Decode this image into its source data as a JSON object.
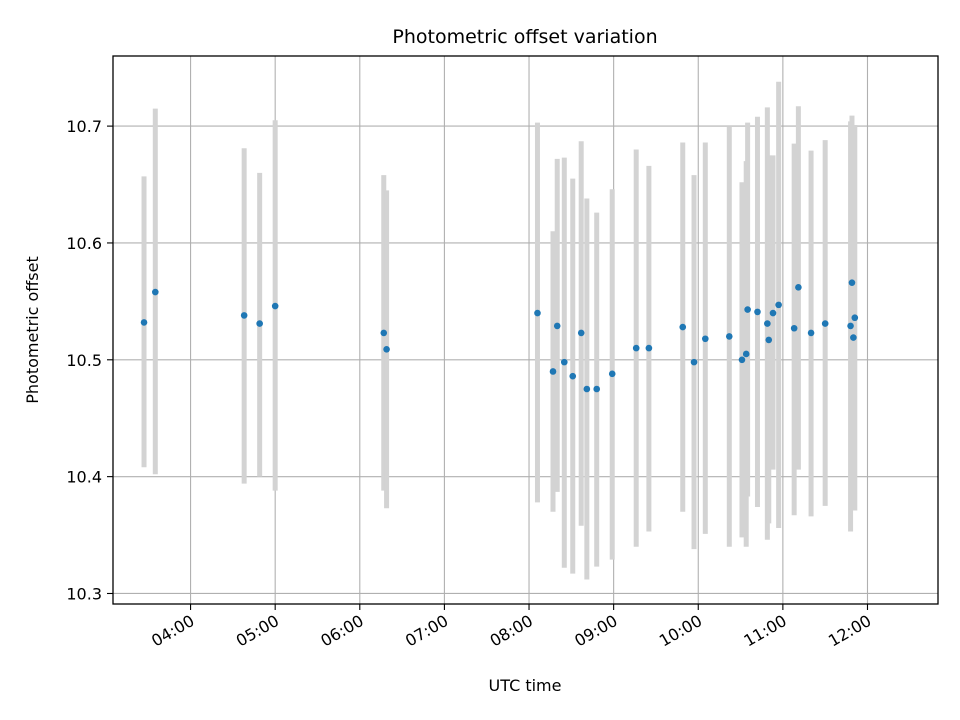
{
  "chart_data": {
    "type": "scatter",
    "title": "Photometric offset variation",
    "xlabel": "UTC time",
    "ylabel": "Photometric offset",
    "x_unit": "UTC time (HH:MM)",
    "xlim": [
      "03:05",
      "12:50"
    ],
    "ylim": [
      10.291,
      10.76
    ],
    "x_ticks": [
      "04:00",
      "05:00",
      "06:00",
      "07:00",
      "08:00",
      "09:00",
      "10:00",
      "11:00",
      "12:00"
    ],
    "y_ticks": [
      10.3,
      10.4,
      10.5,
      10.6,
      10.7
    ],
    "grid": true,
    "legend": "none",
    "colors": {
      "points": "#1f77b4",
      "errorbars": "#d3d3d3",
      "grid": "#b0b0b0",
      "axes": "#000000"
    },
    "points": [
      {
        "x": "03:27",
        "y": 10.532,
        "ylow": 10.408,
        "yhigh": 10.657
      },
      {
        "x": "03:35",
        "y": 10.558,
        "ylow": 10.402,
        "yhigh": 10.715
      },
      {
        "x": "04:38",
        "y": 10.538,
        "ylow": 10.394,
        "yhigh": 10.681
      },
      {
        "x": "04:49",
        "y": 10.531,
        "ylow": 10.4,
        "yhigh": 10.66
      },
      {
        "x": "05:00",
        "y": 10.546,
        "ylow": 10.388,
        "yhigh": 10.705
      },
      {
        "x": "06:17",
        "y": 10.523,
        "ylow": 10.388,
        "yhigh": 10.658
      },
      {
        "x": "06:19",
        "y": 10.509,
        "ylow": 10.373,
        "yhigh": 10.645
      },
      {
        "x": "08:06",
        "y": 10.54,
        "ylow": 10.378,
        "yhigh": 10.703
      },
      {
        "x": "08:17",
        "y": 10.49,
        "ylow": 10.37,
        "yhigh": 10.61
      },
      {
        "x": "08:20",
        "y": 10.529,
        "ylow": 10.387,
        "yhigh": 10.672
      },
      {
        "x": "08:25",
        "y": 10.498,
        "ylow": 10.322,
        "yhigh": 10.673
      },
      {
        "x": "08:31",
        "y": 10.486,
        "ylow": 10.317,
        "yhigh": 10.655
      },
      {
        "x": "08:37",
        "y": 10.523,
        "ylow": 10.358,
        "yhigh": 10.687
      },
      {
        "x": "08:41",
        "y": 10.475,
        "ylow": 10.312,
        "yhigh": 10.638
      },
      {
        "x": "08:48",
        "y": 10.475,
        "ylow": 10.323,
        "yhigh": 10.626
      },
      {
        "x": "08:59",
        "y": 10.488,
        "ylow": 10.329,
        "yhigh": 10.646
      },
      {
        "x": "09:16",
        "y": 10.51,
        "ylow": 10.34,
        "yhigh": 10.68
      },
      {
        "x": "09:25",
        "y": 10.51,
        "ylow": 10.353,
        "yhigh": 10.666
      },
      {
        "x": "09:49",
        "y": 10.528,
        "ylow": 10.37,
        "yhigh": 10.686
      },
      {
        "x": "09:57",
        "y": 10.498,
        "ylow": 10.338,
        "yhigh": 10.658
      },
      {
        "x": "10:05",
        "y": 10.518,
        "ylow": 10.351,
        "yhigh": 10.686
      },
      {
        "x": "10:22",
        "y": 10.52,
        "ylow": 10.34,
        "yhigh": 10.7
      },
      {
        "x": "10:31",
        "y": 10.5,
        "ylow": 10.348,
        "yhigh": 10.652
      },
      {
        "x": "10:34",
        "y": 10.505,
        "ylow": 10.34,
        "yhigh": 10.67
      },
      {
        "x": "10:35",
        "y": 10.543,
        "ylow": 10.383,
        "yhigh": 10.703
      },
      {
        "x": "10:42",
        "y": 10.541,
        "ylow": 10.374,
        "yhigh": 10.708
      },
      {
        "x": "10:49",
        "y": 10.531,
        "ylow": 10.346,
        "yhigh": 10.716
      },
      {
        "x": "10:50",
        "y": 10.517,
        "ylow": 10.36,
        "yhigh": 10.675
      },
      {
        "x": "10:53",
        "y": 10.54,
        "ylow": 10.406,
        "yhigh": 10.675
      },
      {
        "x": "10:57",
        "y": 10.547,
        "ylow": 10.356,
        "yhigh": 10.738
      },
      {
        "x": "11:08",
        "y": 10.527,
        "ylow": 10.367,
        "yhigh": 10.685
      },
      {
        "x": "11:11",
        "y": 10.562,
        "ylow": 10.406,
        "yhigh": 10.717
      },
      {
        "x": "11:20",
        "y": 10.523,
        "ylow": 10.366,
        "yhigh": 10.679
      },
      {
        "x": "11:30",
        "y": 10.531,
        "ylow": 10.375,
        "yhigh": 10.688
      },
      {
        "x": "11:48",
        "y": 10.529,
        "ylow": 10.353,
        "yhigh": 10.704
      },
      {
        "x": "11:49",
        "y": 10.566,
        "ylow": 10.42,
        "yhigh": 10.709
      },
      {
        "x": "11:50",
        "y": 10.519,
        "ylow": 10.372,
        "yhigh": 10.667
      },
      {
        "x": "11:51",
        "y": 10.536,
        "ylow": 10.371,
        "yhigh": 10.701
      }
    ]
  }
}
